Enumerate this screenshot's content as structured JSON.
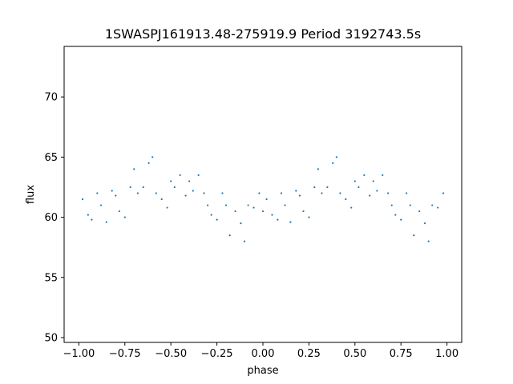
{
  "chart_data": {
    "type": "scatter",
    "title": "1SWASPJ161913.48-275919.9 Period 3192743.5s",
    "xlabel": "phase",
    "ylabel": "flux",
    "xlim": [
      -1.08,
      1.08
    ],
    "ylim": [
      49.6,
      74.2
    ],
    "xticks": [
      -1.0,
      -0.75,
      -0.5,
      -0.25,
      0.0,
      0.25,
      0.5,
      0.75,
      1.0
    ],
    "xtick_labels": [
      "−1.00",
      "−0.75",
      "−0.50",
      "−0.25",
      "0.00",
      "0.25",
      "0.50",
      "0.75",
      "1.00"
    ],
    "yticks": [
      50,
      55,
      60,
      65,
      70
    ],
    "ytick_labels": [
      "50",
      "55",
      "60",
      "65",
      "70"
    ],
    "grid": false,
    "legend": "none",
    "series": [
      {
        "color": "#1f77b4",
        "x": [
          -0.98,
          -0.95,
          -0.93,
          -0.9,
          -0.88,
          -0.85,
          -0.82,
          -0.8,
          -0.78,
          -0.75,
          -0.72,
          -0.7,
          -0.68,
          -0.65,
          -0.62,
          -0.6,
          -0.58,
          -0.55,
          -0.52,
          -0.5,
          -0.48,
          -0.45,
          -0.42,
          -0.4,
          -0.38,
          -0.35,
          -0.32,
          -0.3,
          -0.28,
          -0.25,
          -0.22,
          -0.2,
          -0.18,
          -0.15,
          -0.12,
          -0.1,
          -0.08,
          -0.05,
          -0.02,
          0.0,
          0.02,
          0.05,
          0.08,
          0.1,
          0.12,
          0.15,
          0.18,
          0.2,
          0.22,
          0.25,
          0.28,
          0.3,
          0.32,
          0.35,
          0.38,
          0.4,
          0.42,
          0.45,
          0.48,
          0.5,
          0.52,
          0.55,
          0.58,
          0.6,
          0.62,
          0.65,
          0.68,
          0.7,
          0.72,
          0.75,
          0.78,
          0.8,
          0.82,
          0.85,
          0.88,
          0.9,
          0.92,
          0.95,
          0.98
        ],
        "y": [
          61.5,
          60.2,
          59.8,
          62.0,
          61.0,
          59.6,
          62.2,
          61.8,
          60.5,
          60.0,
          62.5,
          64.0,
          62.0,
          62.5,
          64.5,
          65.0,
          62.0,
          61.5,
          60.8,
          63.0,
          62.5,
          63.5,
          61.8,
          63.0,
          62.2,
          63.5,
          62.0,
          61.0,
          60.2,
          59.8,
          62.0,
          61.0,
          58.5,
          60.5,
          59.5,
          58.0,
          61.0,
          60.8,
          62.0,
          60.5,
          61.5,
          60.2,
          59.8,
          62.0,
          61.0,
          59.6,
          62.2,
          61.8,
          60.5,
          60.0,
          62.5,
          64.0,
          62.0,
          62.5,
          64.5,
          65.0,
          62.0,
          61.5,
          60.8,
          63.0,
          62.5,
          63.5,
          61.8,
          63.0,
          62.2,
          63.5,
          62.0,
          61.0,
          60.2,
          59.8,
          62.0,
          61.0,
          58.5,
          60.5,
          59.5,
          58.0,
          61.0,
          60.8,
          62.0
        ]
      }
    ]
  }
}
